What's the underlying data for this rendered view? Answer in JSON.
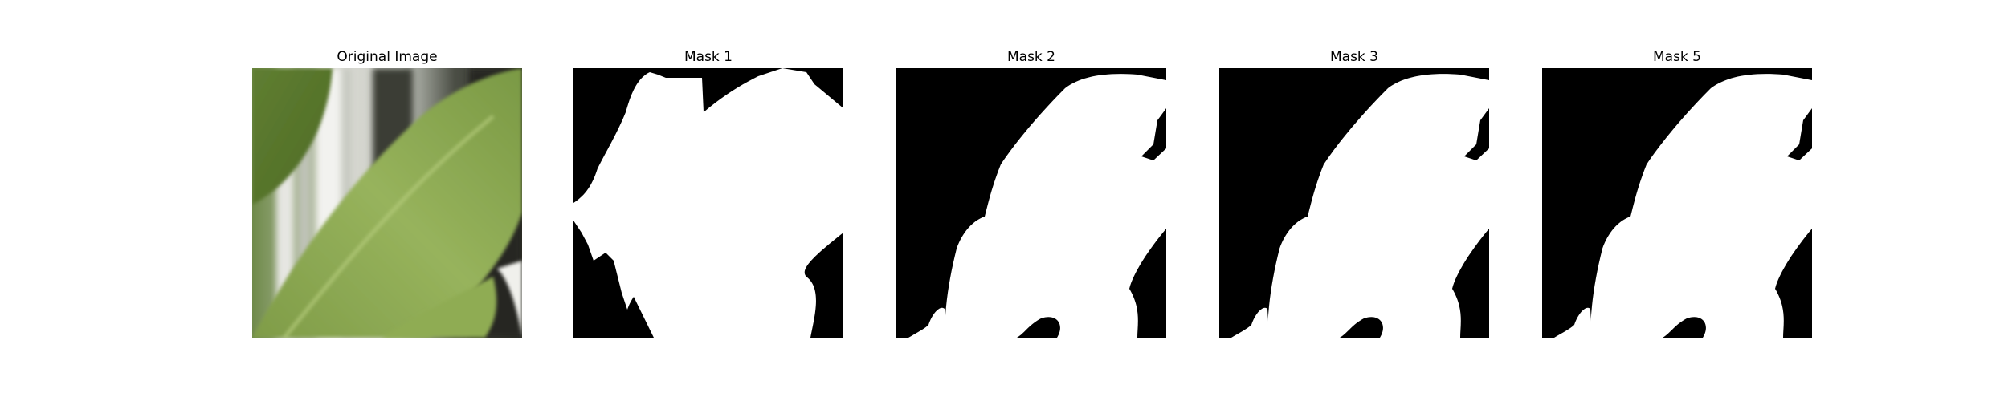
{
  "figure": {
    "panels": [
      {
        "title": "Original Image",
        "kind": "photo"
      },
      {
        "title": "Mask 1",
        "kind": "mask"
      },
      {
        "title": "Mask 2",
        "kind": "mask"
      },
      {
        "title": "Mask 3",
        "kind": "mask"
      },
      {
        "title": "Mask 5",
        "kind": "mask"
      }
    ],
    "colors": {
      "mask_foreground": "#ffffff",
      "mask_background": "#000000",
      "leaf_main": "#8aa654",
      "leaf_dark": "#5c7a2e",
      "window_bright": "#f2f2ef",
      "window_shadow": "#2b2d27"
    }
  }
}
